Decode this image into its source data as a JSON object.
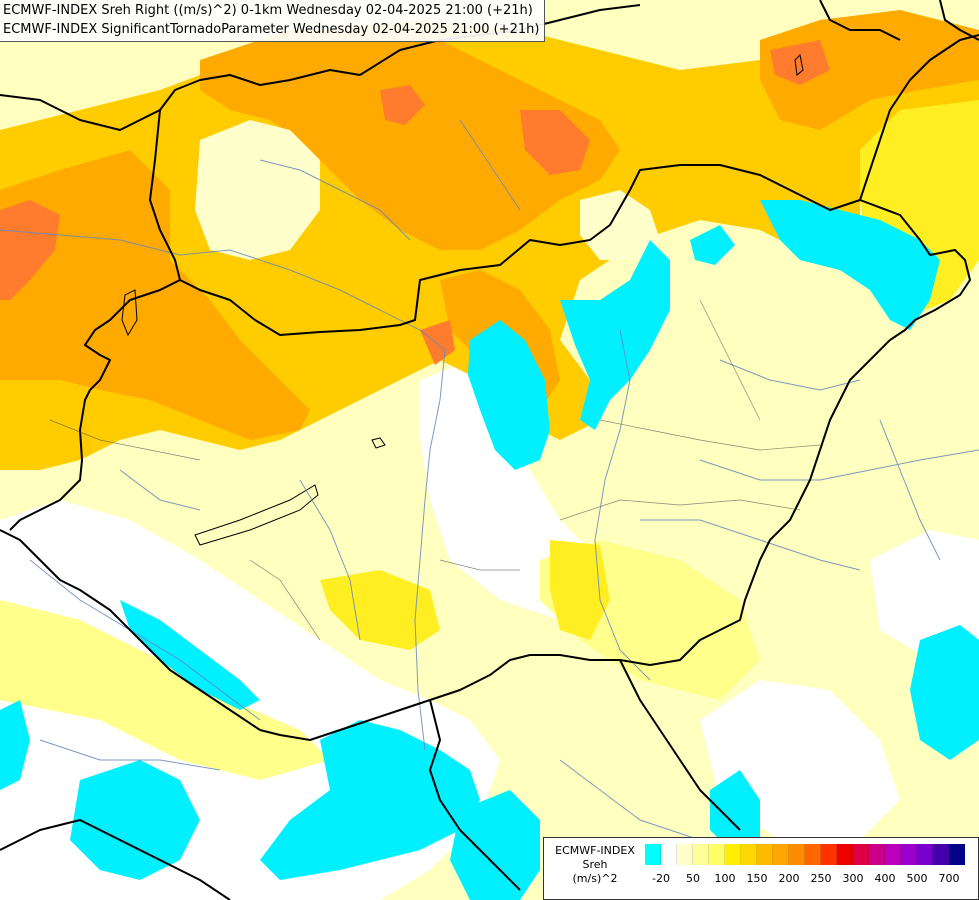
{
  "header": {
    "line1": "ECMWF-INDEX Sreh Right ((m/s)^2) 0-1km Wednesday 02-04-2025 21:00 (+21h)",
    "line2": "ECMWF-INDEX SignificantTornadoParameter Wednesday 02-04-2025 21:00 (+21h)"
  },
  "legend": {
    "model": "ECMWF-INDEX",
    "variable": "Sreh",
    "unit": "(m/s)^2",
    "colors": [
      "#00ffff",
      "#ffffff",
      "#ffffcc",
      "#ffff99",
      "#ffff66",
      "#ffee00",
      "#ffd700",
      "#ffbb00",
      "#ffa500",
      "#ff8c00",
      "#ff6600",
      "#ff3300",
      "#ee0000",
      "#dd0044",
      "#cc0088",
      "#bb00bb",
      "#9900cc",
      "#7700cc",
      "#4400aa",
      "#000088"
    ],
    "ticks": [
      "-20",
      "50",
      "100",
      "150",
      "200",
      "250",
      "300",
      "400",
      "500",
      "700"
    ]
  },
  "palette": {
    "cyan": "#00f0ff",
    "white": "#ffffff",
    "pale_yellow": "#ffffc0",
    "light_yellow": "#ffff8c",
    "yellow": "#ffee22",
    "gold": "#ffcc00",
    "orange": "#ffaa00",
    "dark_orange": "#ff7b2e"
  }
}
